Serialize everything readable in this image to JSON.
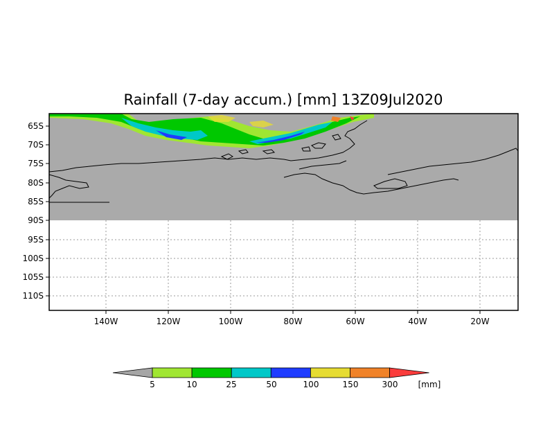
{
  "title": "Rainfall (7-day accum.) [mm] 13Z09Jul2020",
  "lat_labels": [
    "65S",
    "70S",
    "75S",
    "80S",
    "85S",
    "90S",
    "95S",
    "100S",
    "105S",
    "110S"
  ],
  "lon_labels": [
    "140W",
    "120W",
    "100W",
    "80W",
    "60W",
    "40W",
    "20W"
  ],
  "colorbar": {
    "thresholds": [
      "5",
      "10",
      "25",
      "50",
      "100",
      "150",
      "300"
    ],
    "unit": "[mm]",
    "colors": [
      "#a6a6a6",
      "#a0e632",
      "#00c800",
      "#00c8c8",
      "#1e3cff",
      "#e6dc32",
      "#f08228",
      "#fa3c3c"
    ]
  },
  "colors": {
    "land_mask": "#aaaaaa",
    "background": "#ffffff",
    "grid": "#999999",
    "coast": "#000000"
  }
}
